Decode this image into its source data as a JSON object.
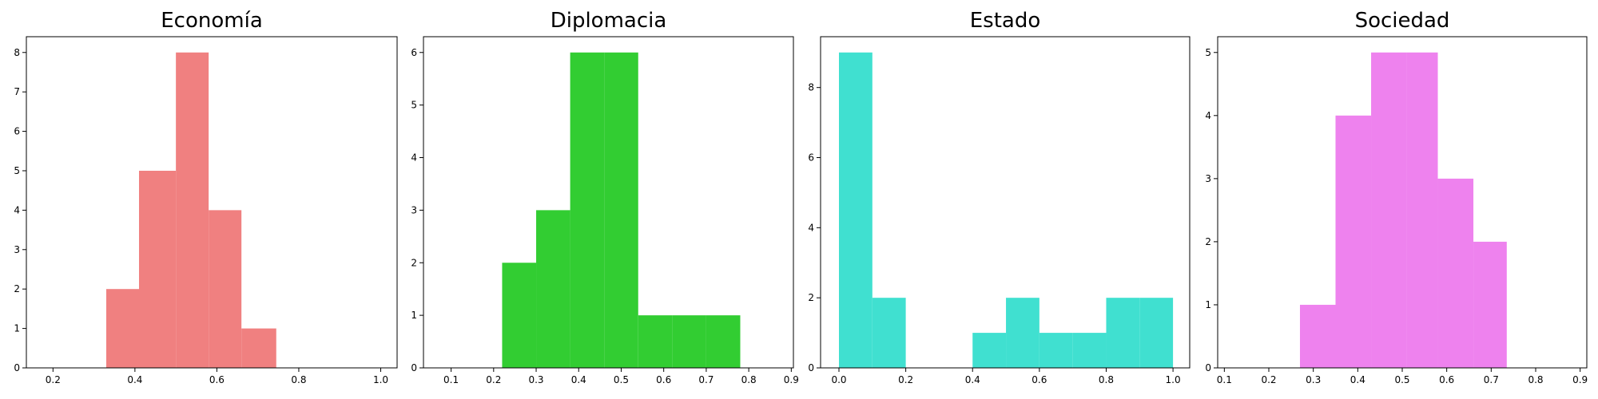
{
  "chart_data": [
    {
      "type": "bar",
      "title": "Economía",
      "xlabel": "",
      "ylabel": "",
      "color": "#F08080",
      "xlim": [
        0.135,
        1.04
      ],
      "ylim": [
        0,
        8.4
      ],
      "xticks": [
        0.2,
        0.4,
        0.6,
        0.8,
        1.0
      ],
      "yticks": [
        0,
        1,
        2,
        3,
        4,
        5,
        6,
        7,
        8
      ],
      "bins": [
        {
          "x0": 0.33,
          "x1": 0.41,
          "value": 2
        },
        {
          "x0": 0.41,
          "x1": 0.5,
          "value": 5
        },
        {
          "x0": 0.5,
          "x1": 0.58,
          "value": 8
        },
        {
          "x0": 0.58,
          "x1": 0.66,
          "value": 4
        },
        {
          "x0": 0.66,
          "x1": 0.745,
          "value": 1
        }
      ]
    },
    {
      "type": "bar",
      "title": "Diplomacia",
      "xlabel": "",
      "ylabel": "",
      "color": "#32CD32",
      "xlim": [
        0.035,
        0.905
      ],
      "ylim": [
        0,
        6.3
      ],
      "xticks": [
        0.1,
        0.2,
        0.3,
        0.4,
        0.5,
        0.6,
        0.7,
        0.8,
        0.9
      ],
      "yticks": [
        0,
        1,
        2,
        3,
        4,
        5,
        6
      ],
      "bins": [
        {
          "x0": 0.22,
          "x1": 0.3,
          "value": 2
        },
        {
          "x0": 0.3,
          "x1": 0.38,
          "value": 3
        },
        {
          "x0": 0.38,
          "x1": 0.46,
          "value": 6
        },
        {
          "x0": 0.46,
          "x1": 0.54,
          "value": 6
        },
        {
          "x0": 0.54,
          "x1": 0.62,
          "value": 1
        },
        {
          "x0": 0.62,
          "x1": 0.7,
          "value": 1
        },
        {
          "x0": 0.7,
          "x1": 0.78,
          "value": 1
        }
      ]
    },
    {
      "type": "bar",
      "title": "Estado",
      "xlabel": "",
      "ylabel": "",
      "color": "#40E0D0",
      "xlim": [
        -0.055,
        1.05
      ],
      "ylim": [
        0,
        9.45
      ],
      "xticks": [
        0.0,
        0.2,
        0.4,
        0.6,
        0.8,
        1.0
      ],
      "yticks": [
        0,
        2,
        4,
        6,
        8
      ],
      "bins": [
        {
          "x0": 0.0,
          "x1": 0.1,
          "value": 9
        },
        {
          "x0": 0.1,
          "x1": 0.2,
          "value": 2
        },
        {
          "x0": 0.2,
          "x1": 0.3,
          "value": 0
        },
        {
          "x0": 0.3,
          "x1": 0.4,
          "value": 0
        },
        {
          "x0": 0.4,
          "x1": 0.5,
          "value": 1
        },
        {
          "x0": 0.5,
          "x1": 0.6,
          "value": 2
        },
        {
          "x0": 0.6,
          "x1": 0.7,
          "value": 1
        },
        {
          "x0": 0.7,
          "x1": 0.8,
          "value": 1
        },
        {
          "x0": 0.8,
          "x1": 0.9,
          "value": 2
        },
        {
          "x0": 0.9,
          "x1": 1.0,
          "value": 2
        }
      ]
    },
    {
      "type": "bar",
      "title": "Sociedad",
      "xlabel": "",
      "ylabel": "",
      "color": "#EE82EE",
      "xlim": [
        0.085,
        0.915
      ],
      "ylim": [
        0,
        5.25
      ],
      "xticks": [
        0.1,
        0.2,
        0.3,
        0.4,
        0.5,
        0.6,
        0.7,
        0.8,
        0.9
      ],
      "yticks": [
        0,
        1,
        2,
        3,
        4,
        5
      ],
      "bins": [
        {
          "x0": 0.27,
          "x1": 0.35,
          "value": 1
        },
        {
          "x0": 0.35,
          "x1": 0.43,
          "value": 4
        },
        {
          "x0": 0.43,
          "x1": 0.51,
          "value": 5
        },
        {
          "x0": 0.51,
          "x1": 0.58,
          "value": 5
        },
        {
          "x0": 0.58,
          "x1": 0.66,
          "value": 3
        },
        {
          "x0": 0.66,
          "x1": 0.735,
          "value": 2
        }
      ]
    }
  ]
}
